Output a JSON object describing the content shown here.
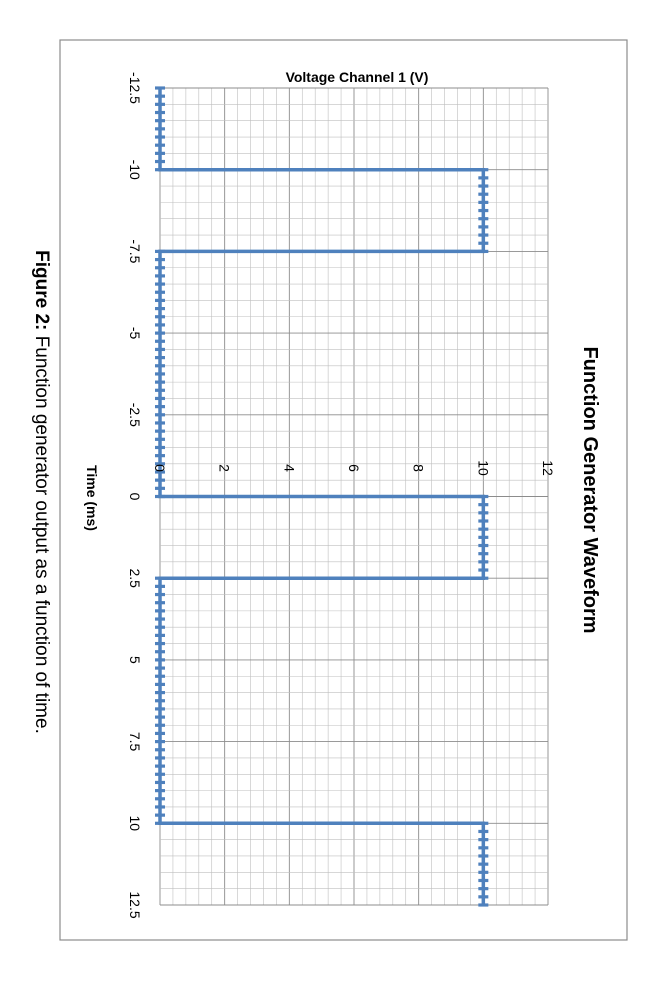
{
  "chart_data": {
    "type": "line",
    "title": "Function Generator Waveform",
    "xlabel": "Time (ms)",
    "ylabel": "Voltage Channel 1 (V)",
    "xlim": [
      -12.5,
      12.5
    ],
    "ylim": [
      0,
      12
    ],
    "x_ticks": [
      "-12.5",
      "-10",
      "-7.5",
      "-5",
      "-2.5",
      "0",
      "2.5",
      "5",
      "7.5",
      "10",
      "12.5"
    ],
    "y_ticks": [
      "0",
      "2",
      "4",
      "6",
      "8",
      "10",
      "12"
    ],
    "grid": true,
    "orientation": "rotated 90 degrees clockwise",
    "series": [
      {
        "color": "#4f81bd",
        "x": [
          -12.5,
          -10,
          -10,
          -7.5,
          -7.5,
          0,
          0,
          2.5,
          2.5,
          10,
          10,
          12.5
        ],
        "y": [
          0,
          0,
          10,
          10,
          0,
          0,
          10,
          10,
          0,
          0,
          10,
          10
        ]
      }
    ]
  },
  "caption": {
    "label": "Figure 2:",
    "text": " Function generator output as a function of time."
  }
}
